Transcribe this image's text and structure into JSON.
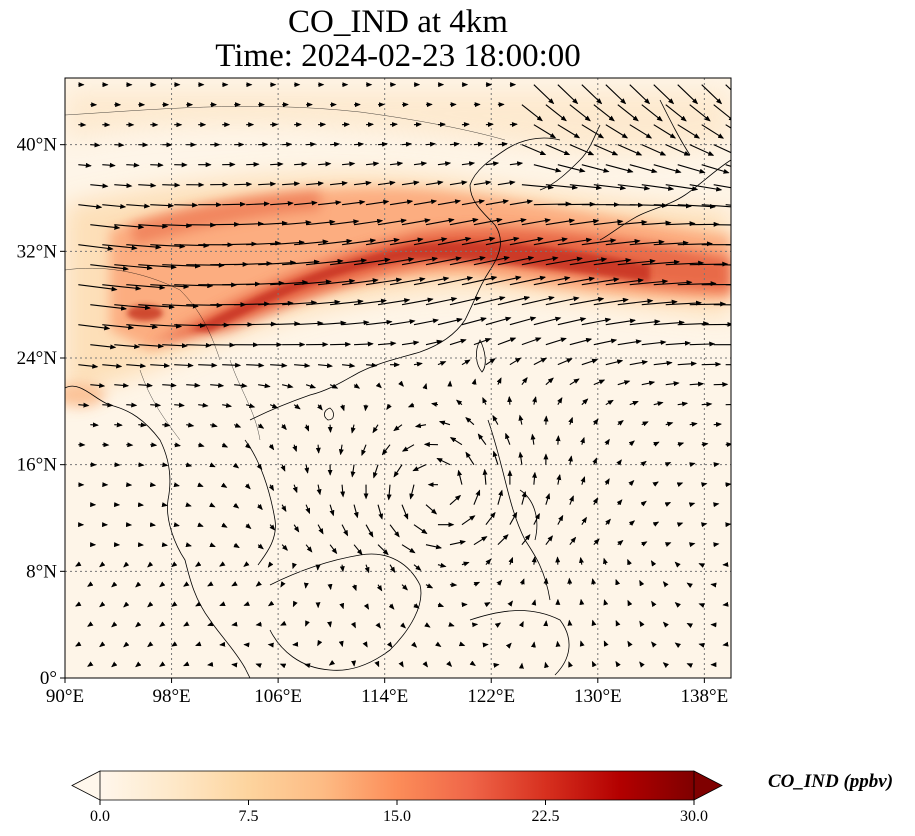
{
  "title": {
    "line1": "CO_IND at 4km",
    "line2": "Time: 2024-02-23 18:00:00"
  },
  "map": {
    "variable": "CO_IND",
    "level": "4km",
    "time": "2024-02-23 18:00:00",
    "lon_range": [
      90,
      140
    ],
    "lat_range": [
      0,
      45
    ],
    "x_ticks": [
      "90°E",
      "98°E",
      "106°E",
      "114°E",
      "122°E",
      "130°E",
      "138°E"
    ],
    "x_tick_values": [
      90,
      98,
      106,
      114,
      122,
      130,
      138
    ],
    "y_ticks": [
      "0°",
      "8°N",
      "16°N",
      "24°N",
      "32°N",
      "40°N"
    ],
    "y_tick_values": [
      0,
      8,
      16,
      24,
      32,
      40
    ],
    "gridlines": "dotted",
    "colormap": "OrRd",
    "overlay": "wind vectors"
  },
  "colorbar": {
    "label": "CO_IND (ppbv)",
    "min": 0.0,
    "max": 30.0,
    "ticks": [
      "0.0",
      "7.5",
      "15.0",
      "22.5",
      "30.0"
    ],
    "tick_values": [
      0,
      7.5,
      15,
      22.5,
      30
    ],
    "extend": "both",
    "colors": [
      "#fff7ec",
      "#fee8c8",
      "#fdd49e",
      "#fdbb84",
      "#fc8d59",
      "#ef6548",
      "#d7301f",
      "#b30000",
      "#7f0000"
    ]
  }
}
